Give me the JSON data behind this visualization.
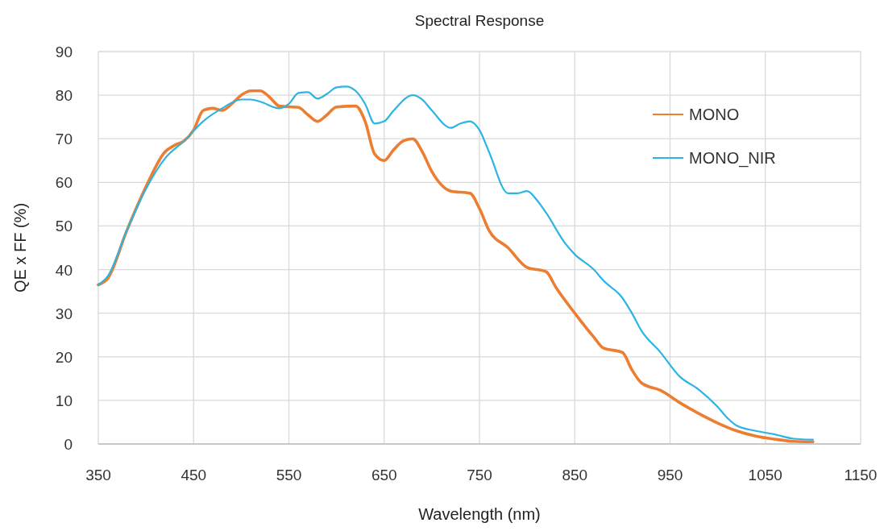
{
  "chart_data": {
    "type": "line",
    "title": "Spectral Response",
    "xlabel": "Wavelength (nm)",
    "ylabel": "QE x FF (%)",
    "xlim": [
      350,
      1150
    ],
    "xticks": [
      350,
      450,
      550,
      650,
      750,
      850,
      950,
      1050,
      1150
    ],
    "ylim": [
      0,
      90
    ],
    "yticks": [
      0,
      10,
      20,
      30,
      40,
      50,
      60,
      70,
      80,
      90
    ],
    "grid": true,
    "legend": "top right",
    "series": [
      {
        "name": "MONO",
        "color": "#ed7d31",
        "x": [
          350,
          360,
          380,
          400,
          420,
          430,
          440,
          450,
          460,
          470,
          480,
          490,
          500,
          510,
          520,
          530,
          540,
          560,
          570,
          580,
          590,
          600,
          620,
          630,
          640,
          650,
          660,
          670,
          680,
          690,
          700,
          720,
          740,
          750,
          760,
          780,
          800,
          820,
          830,
          850,
          870,
          880,
          900,
          910,
          920,
          940,
          960,
          980,
          1000,
          1020,
          1040,
          1060,
          1080,
          1100
        ],
        "values": [
          36.5,
          38,
          49,
          59,
          67,
          68.5,
          69.5,
          72,
          76.5,
          77,
          76.5,
          78,
          80,
          81,
          81,
          79.5,
          77.5,
          77.2,
          75.5,
          74,
          75.5,
          77.3,
          77.5,
          74,
          66.5,
          65,
          67.5,
          69.5,
          70,
          67,
          62.5,
          58,
          57.5,
          54,
          49,
          45,
          40.5,
          39.5,
          36,
          30,
          24.5,
          22,
          21,
          17,
          14,
          12.3,
          9.5,
          7,
          4.8,
          3,
          1.8,
          1.1,
          0.6,
          0.5
        ]
      },
      {
        "name": "MONO_NIR",
        "color": "#2bb5e3",
        "x": [
          350,
          360,
          380,
          400,
          420,
          440,
          460,
          480,
          500,
          510,
          520,
          540,
          550,
          560,
          570,
          580,
          590,
          600,
          610,
          620,
          630,
          640,
          650,
          660,
          680,
          690,
          700,
          720,
          730,
          740,
          750,
          760,
          780,
          790,
          800,
          810,
          820,
          840,
          850,
          870,
          880,
          900,
          910,
          920,
          940,
          960,
          980,
          1000,
          1010,
          1020,
          1040,
          1060,
          1080,
          1100
        ],
        "values": [
          36.5,
          38.5,
          49,
          58.5,
          65.5,
          69.5,
          74,
          77,
          79,
          79,
          78.5,
          77,
          78,
          80.5,
          80.7,
          79.2,
          80.3,
          81.8,
          82,
          81,
          78,
          73.5,
          74,
          76.5,
          80,
          79,
          76.5,
          72.5,
          73.5,
          74,
          72,
          67,
          57.5,
          57.5,
          58,
          56,
          53,
          46,
          43.5,
          40,
          37.5,
          33.5,
          30,
          26,
          21,
          15.5,
          12.5,
          8.5,
          6,
          4.2,
          3,
          2.2,
          1.2,
          1.0
        ]
      }
    ]
  }
}
